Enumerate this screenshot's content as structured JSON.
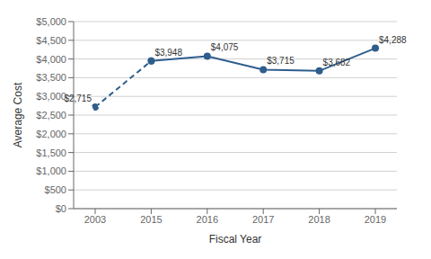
{
  "chart_data": {
    "type": "line",
    "categories": [
      "2003",
      "2015",
      "2016",
      "2017",
      "2018",
      "2019"
    ],
    "values": [
      2715,
      3948,
      4075,
      3715,
      3682,
      4288
    ],
    "value_labels": [
      "$2,715",
      "$3,948",
      "$4,075",
      "$3,715",
      "$3,682",
      "$4,288"
    ],
    "data_labels": true,
    "color": "#2E5E8E",
    "marker": "circle",
    "xlabel": "Fiscal Year",
    "ylabel": "Average Cost",
    "ylim": [
      0,
      5000
    ],
    "yticks": [
      {
        "value": 0,
        "label": "$0"
      },
      {
        "value": 500,
        "label": "$500"
      },
      {
        "value": 1000,
        "label": "$1,000"
      },
      {
        "value": 1500,
        "label": "$1,500"
      },
      {
        "value": 2000,
        "label": "$2,000"
      },
      {
        "value": 2500,
        "label": "$2,500"
      },
      {
        "value": 3000,
        "label": "$3,000"
      },
      {
        "value": 3500,
        "label": "$3,500"
      },
      {
        "value": 4000,
        "label": "$4,000"
      },
      {
        "value": 4500,
        "label": "$4,500"
      },
      {
        "value": 5000,
        "label": "$5,000"
      }
    ],
    "grid": true
  }
}
